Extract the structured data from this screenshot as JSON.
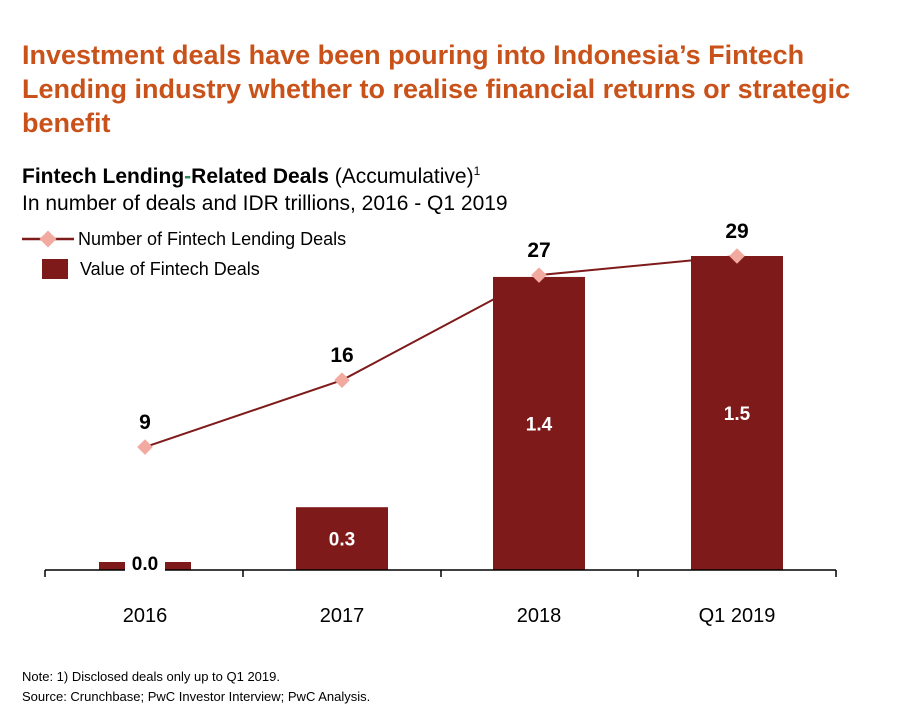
{
  "headline": "Investment deals have been pouring into Indonesia’s Fintech Lending industry whether to realise financial returns or strategic benefit",
  "chart_data": {
    "type": "bar",
    "title_bold_1": "Fintech Lending",
    "title_dash": "-",
    "title_bold_2": "Related Deals",
    "title_normal": " (Accumulative)",
    "title_sup": "1",
    "subtitle": "In number of deals and IDR trillions, 2016 - Q1 2019",
    "categories": [
      "2016",
      "2017",
      "2018",
      "Q1 2019"
    ],
    "series": [
      {
        "name": "Value of Fintech Deals",
        "kind": "bar",
        "values": [
          0.0,
          0.3,
          1.4,
          1.5
        ],
        "labels": [
          "0.0",
          "0.3",
          "1.4",
          "1.5"
        ],
        "color": "#7F1A1B"
      },
      {
        "name": "Number of Fintech Lending Deals",
        "kind": "line",
        "values": [
          9,
          16,
          27,
          29
        ],
        "labels": [
          "9",
          "16",
          "27",
          "29"
        ],
        "color": "#7F1A1B",
        "marker_color": "#F2A9A0"
      }
    ],
    "bar_ylim": [
      0,
      1.5
    ],
    "line_ylim": [
      0,
      29
    ],
    "legend_position": "top-left",
    "grid": false
  },
  "colors": {
    "headline": "#C9521A",
    "title_dash": "#2E8B57",
    "bar_label": "#FFFFFF"
  },
  "notes": {
    "note": "Note: 1) Disclosed deals only up to Q1 2019.",
    "source": "Source: Crunchbase; PwC Investor Interview; PwC Analysis."
  }
}
